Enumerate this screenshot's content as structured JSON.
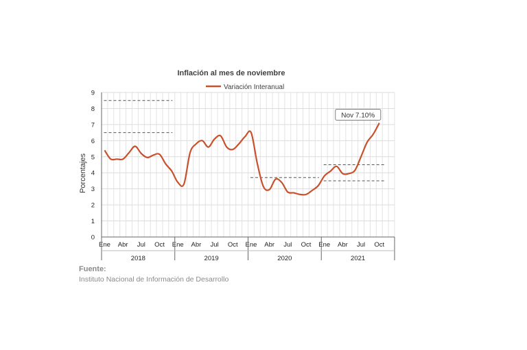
{
  "chart_data": {
    "type": "line",
    "title": "Inflación al mes de noviembre",
    "ylabel": "Porcentajes",
    "xlabel": "",
    "ylim": [
      0,
      9
    ],
    "yticks": [
      0,
      1,
      2,
      3,
      4,
      5,
      6,
      7,
      8,
      9
    ],
    "legend_position": "top",
    "grid": true,
    "month_tick_labels": [
      "Ene",
      "Abr",
      "Jul",
      "Oct"
    ],
    "years": [
      "2018",
      "2019",
      "2020",
      "2021"
    ],
    "months_per_year": 12,
    "series": [
      {
        "name": "Variación Interanual",
        "color": "#C8502A",
        "values": [
          5.4,
          4.85,
          4.85,
          4.85,
          5.25,
          5.65,
          5.2,
          4.95,
          5.1,
          5.15,
          4.55,
          4.1,
          3.4,
          3.3,
          5.25,
          5.8,
          6.0,
          5.6,
          6.1,
          6.3,
          5.6,
          5.45,
          5.8,
          6.25,
          6.5,
          4.6,
          3.15,
          2.95,
          3.6,
          3.4,
          2.8,
          2.75,
          2.65,
          2.65,
          2.9,
          3.2,
          3.8,
          4.1,
          4.4,
          3.95,
          3.95,
          4.15,
          5.0,
          5.9,
          6.4,
          7.1
        ]
      }
    ],
    "reference_lines": [
      {
        "y": 8.5,
        "from": "2018-01",
        "to": "2018-12"
      },
      {
        "y": 6.5,
        "from": "2018-01",
        "to": "2018-12"
      },
      {
        "y": 3.7,
        "from": "2020-01",
        "to": "2020-12"
      },
      {
        "y": 4.5,
        "from": "2021-01",
        "to": "2021-11"
      },
      {
        "y": 3.5,
        "from": "2021-01",
        "to": "2021-11"
      }
    ],
    "annotation": {
      "text": "Nov 7.10%",
      "x_index": 45,
      "y": 7.1
    }
  },
  "source": {
    "title": "Fuente:",
    "text": "Instituto Nacional de Información de  Desarrollo"
  }
}
